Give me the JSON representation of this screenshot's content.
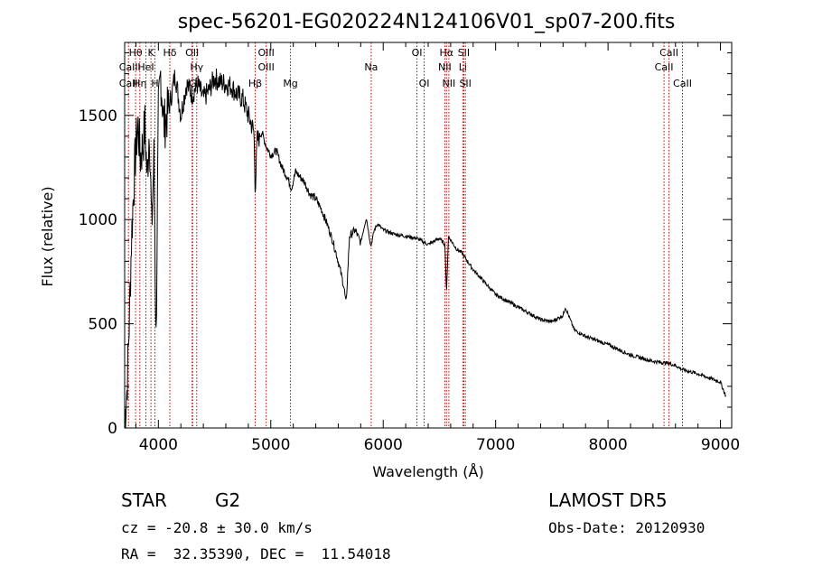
{
  "chart_data": {
    "type": "line",
    "title": "spec-56201-EG020224N124106V01_sp07-200.fits",
    "xlabel": "Wavelength (Å)",
    "ylabel": "Flux (relative)",
    "xlim": [
      3700,
      9100
    ],
    "ylim": [
      0,
      1850
    ],
    "xticks": [
      4000,
      5000,
      6000,
      7000,
      8000,
      9000
    ],
    "yticks": [
      0,
      500,
      1000,
      1500
    ],
    "grid": false,
    "series": [
      {
        "x": [
          3700,
          3720,
          3740,
          3760,
          3780,
          3800,
          3820,
          3840,
          3860,
          3880,
          3900,
          3920,
          3940,
          3960,
          3980,
          4000,
          4020,
          4050,
          4100,
          4150,
          4200,
          4250,
          4300,
          4350,
          4400,
          4450,
          4500,
          4550,
          4600,
          4650,
          4700,
          4750,
          4800,
          4850,
          4861,
          4880,
          4920,
          4960,
          5000,
          5050,
          5100,
          5150,
          5183,
          5220,
          5300,
          5350,
          5400,
          5450,
          5500,
          5550,
          5600,
          5650,
          5670,
          5700,
          5750,
          5800,
          5850,
          5890,
          5920,
          5950,
          6000,
          6100,
          6200,
          6300,
          6400,
          6500,
          6550,
          6563,
          6580,
          6650,
          6700,
          6800,
          6900,
          7000,
          7200,
          7400,
          7500,
          7600,
          7620,
          7700,
          7800,
          8000,
          8200,
          8400,
          8542,
          8600,
          8662,
          8800,
          9000,
          9050
        ],
        "y": [
          50,
          180,
          500,
          900,
          1150,
          1350,
          1450,
          1300,
          1350,
          1450,
          1200,
          1450,
          950,
          1300,
          420,
          1500,
          1700,
          1450,
          1550,
          1700,
          1500,
          1650,
          1600,
          1650,
          1580,
          1620,
          1680,
          1660,
          1650,
          1640,
          1600,
          1580,
          1500,
          1420,
          1150,
          1380,
          1420,
          1350,
          1310,
          1330,
          1250,
          1200,
          1150,
          1230,
          1180,
          1120,
          1100,
          1050,
          980,
          900,
          800,
          680,
          590,
          920,
          950,
          890,
          1010,
          870,
          950,
          980,
          950,
          930,
          920,
          910,
          880,
          910,
          880,
          640,
          920,
          860,
          840,
          760,
          700,
          640,
          580,
          520,
          510,
          540,
          580,
          470,
          440,
          400,
          350,
          320,
          310,
          300,
          280,
          260,
          220,
          150
        ]
      }
    ],
    "lines": [
      {
        "label": "Hθ",
        "wl": 3797,
        "row": 1
      },
      {
        "label": "CaII",
        "wl": 3734,
        "row": 2
      },
      {
        "label": "CaII",
        "wl": 3734,
        "row": 3
      },
      {
        "label": "Hη",
        "wl": 3835,
        "row": 3
      },
      {
        "label": "K",
        "wl": 3934,
        "row": 1
      },
      {
        "label": "HeI",
        "wl": 3889,
        "row": 2
      },
      {
        "label": "H",
        "wl": 3969,
        "row": 3
      },
      {
        "label": "Hδ",
        "wl": 4102,
        "row": 1
      },
      {
        "label": "OII",
        "wl": 4300,
        "row": 1
      },
      {
        "label": "Hγ",
        "wl": 4341,
        "row": 2
      },
      {
        "label": "G",
        "wl": 4305,
        "row": 3
      },
      {
        "label": "OIII",
        "wl": 4959,
        "row": 1
      },
      {
        "label": "OIII",
        "wl": 4959,
        "row": 2
      },
      {
        "label": "Hβ",
        "wl": 4861,
        "row": 3
      },
      {
        "label": "Mg",
        "wl": 5175,
        "row": 3
      },
      {
        "label": "Na",
        "wl": 5893,
        "row": 2
      },
      {
        "label": "OI",
        "wl": 6300,
        "row": 1
      },
      {
        "label": "OI",
        "wl": 6364,
        "row": 3
      },
      {
        "label": "Hα",
        "wl": 6563,
        "row": 1
      },
      {
        "label": "SII",
        "wl": 6717,
        "row": 1
      },
      {
        "label": "NII",
        "wl": 6548,
        "row": 2
      },
      {
        "label": "Li",
        "wl": 6708,
        "row": 2
      },
      {
        "label": "NII",
        "wl": 6584,
        "row": 3
      },
      {
        "label": "SII",
        "wl": 6731,
        "row": 3
      },
      {
        "label": "CaII",
        "wl": 8542,
        "row": 1
      },
      {
        "label": "CaII",
        "wl": 8498,
        "row": 2
      },
      {
        "label": "CaII",
        "wl": 8662,
        "row": 3
      }
    ]
  },
  "info": {
    "star_label": "STAR",
    "subclass": "G2",
    "survey": "LAMOST DR5",
    "cz": "cz = -20.8 ± 30.0 km/s",
    "obs_date": "Obs-Date: 20120930",
    "coords": "RA =  32.35390, DEC =  11.54018"
  },
  "colors": {
    "line_marker": "#cc0000",
    "spectrum": "#000000"
  }
}
